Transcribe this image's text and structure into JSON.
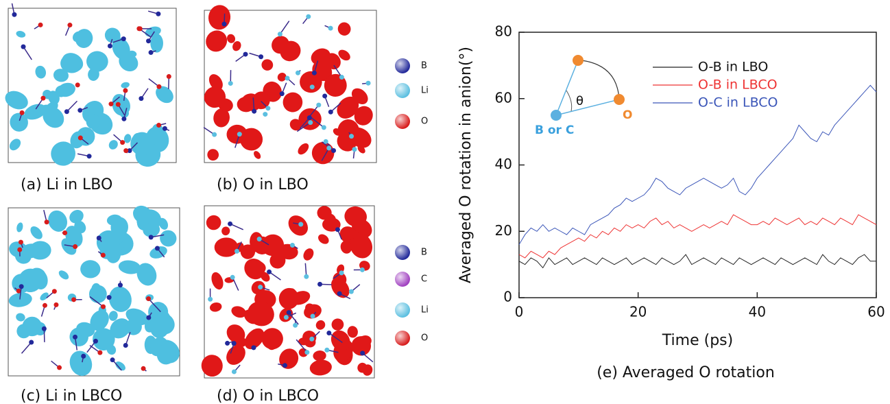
{
  "panels": [
    {
      "caption": "(a) Li in LBO",
      "kind": "li"
    },
    {
      "caption": "(b) O in LBO",
      "kind": "o"
    },
    {
      "caption": "(c) Li in LBCO",
      "kind": "li"
    },
    {
      "caption": "(d) O in LBCO",
      "kind": "o"
    }
  ],
  "atom_legends": [
    {
      "items": [
        {
          "label": "B",
          "color": "#22299a"
        },
        {
          "label": "Li",
          "color": "#5bbfe0"
        },
        {
          "label": "O",
          "color": "#d81c1c"
        }
      ]
    },
    {
      "items": [
        {
          "label": "B",
          "color": "#22299a"
        },
        {
          "label": "C",
          "color": "#a040c0"
        },
        {
          "label": "Li",
          "color": "#5bbfe0"
        },
        {
          "label": "O",
          "color": "#d81c1c"
        }
      ]
    }
  ],
  "inset": {
    "angle": "θ",
    "outer": "O",
    "center": "B or C"
  },
  "chart_data": {
    "type": "line",
    "title": "(e) Averaged O rotation",
    "x_label": "Time (ps)",
    "y_label": "Averaged O rotation in anion(°)",
    "x": [
      0,
      1,
      2,
      3,
      4,
      5,
      6,
      7,
      8,
      9,
      10,
      11,
      12,
      13,
      14,
      15,
      16,
      17,
      18,
      19,
      20,
      21,
      22,
      23,
      24,
      25,
      26,
      27,
      28,
      29,
      30,
      31,
      32,
      33,
      34,
      35,
      36,
      37,
      38,
      39,
      40,
      41,
      42,
      43,
      44,
      45,
      46,
      47,
      48,
      49,
      50,
      51,
      52,
      53,
      54,
      55,
      56,
      57,
      58,
      59,
      60
    ],
    "series": [
      {
        "name": "O-B in LBO",
        "color": "#222222",
        "values": [
          11,
          10,
          12,
          11,
          9,
          12,
          10,
          11,
          12,
          10,
          11,
          12,
          11,
          10,
          12,
          11,
          10,
          11,
          12,
          10,
          11,
          12,
          11,
          10,
          12,
          11,
          10,
          11,
          13,
          10,
          11,
          12,
          11,
          10,
          12,
          11,
          10,
          12,
          11,
          10,
          11,
          12,
          11,
          10,
          12,
          11,
          10,
          11,
          12,
          11,
          10,
          13,
          11,
          10,
          12,
          11,
          10,
          12,
          13,
          11,
          11
        ]
      },
      {
        "name": "O-B in LBCO",
        "color": "#ee3333",
        "values": [
          13,
          12,
          14,
          13,
          12,
          14,
          13,
          15,
          16,
          17,
          18,
          17,
          19,
          18,
          20,
          19,
          21,
          20,
          22,
          21,
          22,
          21,
          23,
          24,
          22,
          23,
          21,
          22,
          21,
          20,
          21,
          22,
          21,
          22,
          23,
          22,
          25,
          24,
          23,
          22,
          22,
          23,
          22,
          24,
          23,
          22,
          23,
          24,
          22,
          23,
          22,
          24,
          23,
          22,
          24,
          23,
          22,
          25,
          24,
          23,
          22
        ]
      },
      {
        "name": "O-C in LBCO",
        "color": "#3a55b8",
        "values": [
          16,
          19,
          21,
          20,
          22,
          20,
          21,
          20,
          19,
          21,
          20,
          19,
          22,
          23,
          24,
          25,
          27,
          28,
          30,
          29,
          30,
          31,
          33,
          36,
          35,
          33,
          32,
          31,
          33,
          34,
          35,
          36,
          35,
          34,
          33,
          34,
          36,
          32,
          31,
          33,
          36,
          38,
          40,
          42,
          44,
          46,
          48,
          52,
          50,
          48,
          47,
          50,
          49,
          52,
          54,
          56,
          58,
          60,
          62,
          64,
          62
        ]
      }
    ],
    "xlim": [
      0,
      60
    ],
    "ylim": [
      0,
      80
    ],
    "xticks": [
      0,
      20,
      40,
      60
    ],
    "yticks": [
      0,
      20,
      40,
      60,
      80
    ]
  }
}
